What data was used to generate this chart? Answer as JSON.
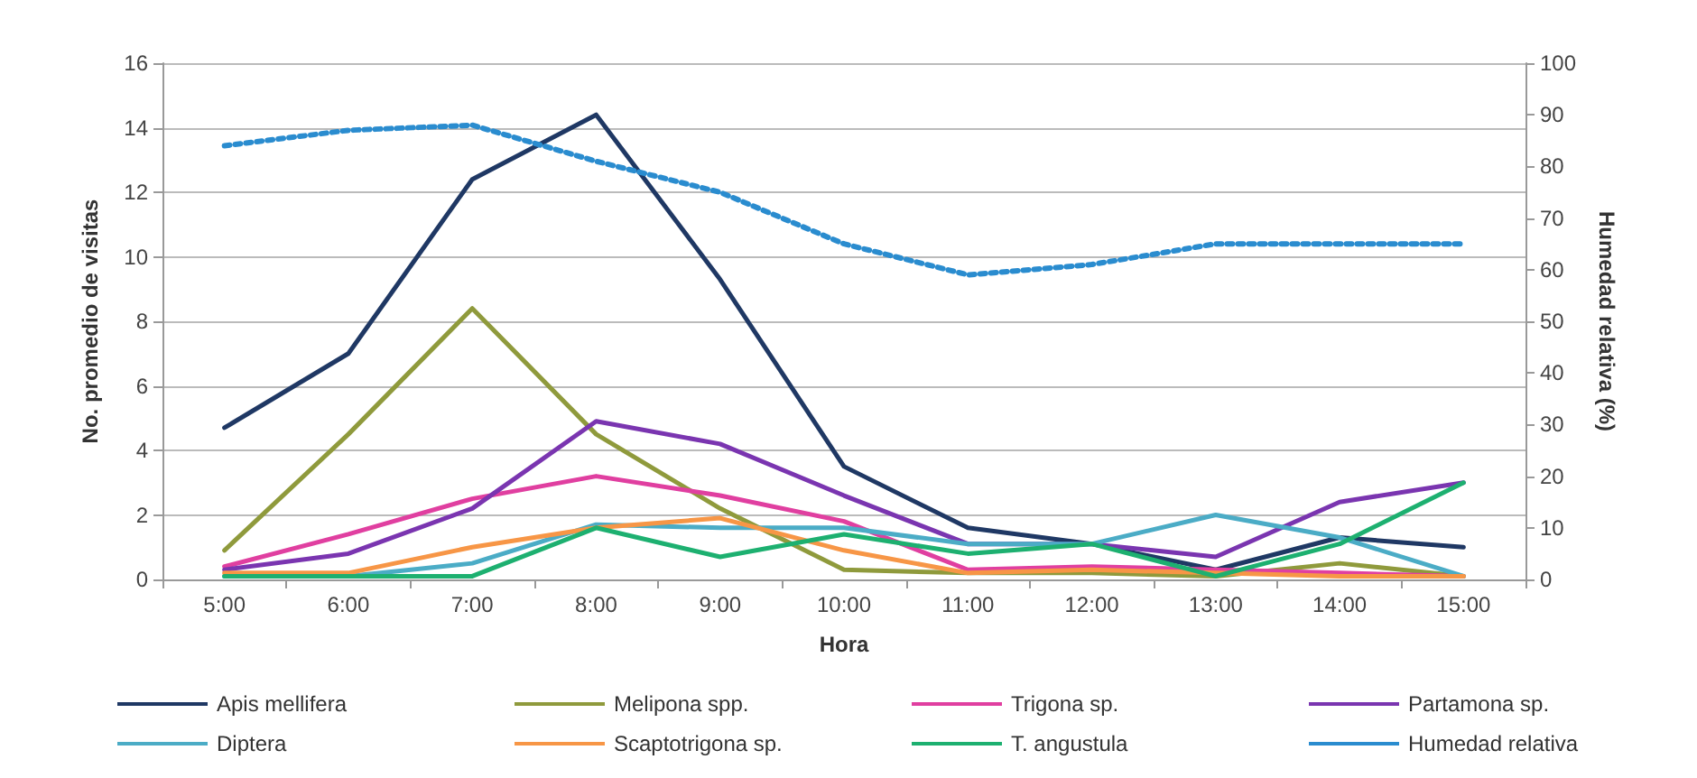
{
  "chart_data": {
    "type": "line",
    "xlabel": "Hora",
    "ylabel": "No. promedio de visitas",
    "y2label": "Humedad relativa (%)",
    "categories": [
      "5:00",
      "6:00",
      "7:00",
      "8:00",
      "9:00",
      "10:00",
      "11:00",
      "12:00",
      "13:00",
      "14:00",
      "15:00"
    ],
    "series": [
      {
        "name": "Apis mellifera",
        "color": "#1f3864",
        "values": [
          4.7,
          7.0,
          12.4,
          14.4,
          9.3,
          3.5,
          1.6,
          1.1,
          0.3,
          1.3,
          1.0
        ]
      },
      {
        "name": "Melipona spp.",
        "color": "#8f9a3c",
        "values": [
          0.9,
          4.5,
          8.4,
          4.5,
          2.2,
          0.3,
          0.2,
          0.2,
          0.1,
          0.5,
          0.1
        ]
      },
      {
        "name": "Trigona sp.",
        "color": "#e03fa0",
        "values": [
          0.4,
          1.4,
          2.5,
          3.2,
          2.6,
          1.8,
          0.3,
          0.4,
          0.3,
          0.2,
          0.1
        ]
      },
      {
        "name": "Partamona sp.",
        "color": "#7a35b0",
        "values": [
          0.3,
          0.8,
          2.2,
          4.9,
          4.2,
          2.6,
          1.1,
          1.1,
          0.7,
          2.4,
          3.0
        ]
      },
      {
        "name": "Diptera",
        "color": "#4bacc6",
        "values": [
          0.1,
          0.1,
          0.5,
          1.7,
          1.6,
          1.6,
          1.1,
          1.1,
          2.0,
          1.3,
          0.1
        ]
      },
      {
        "name": "Scaptotrigona sp.",
        "color": "#f79646",
        "values": [
          0.2,
          0.2,
          1.0,
          1.6,
          1.9,
          0.9,
          0.2,
          0.3,
          0.2,
          0.1,
          0.1
        ]
      },
      {
        "name": "T. angustula",
        "color": "#1db070",
        "values": [
          0.1,
          0.1,
          0.1,
          1.6,
          0.7,
          1.4,
          0.8,
          1.1,
          0.1,
          1.1,
          3.0
        ]
      },
      {
        "name": "Humedad relativa",
        "color": "#2a8ccf",
        "axis": "y2",
        "line_style": "dotted",
        "values": [
          84,
          87,
          88,
          81,
          75,
          65,
          59,
          61,
          65,
          65,
          65
        ]
      }
    ],
    "ylim": [
      0,
      16
    ],
    "yticks": [
      0,
      2,
      4,
      6,
      8,
      10,
      12,
      14,
      16
    ],
    "y2lim": [
      0,
      100
    ],
    "y2ticks": [
      0,
      10,
      20,
      30,
      40,
      50,
      60,
      70,
      80,
      90,
      100
    ],
    "grid": "y",
    "legend": "bottom",
    "marker": "none"
  }
}
